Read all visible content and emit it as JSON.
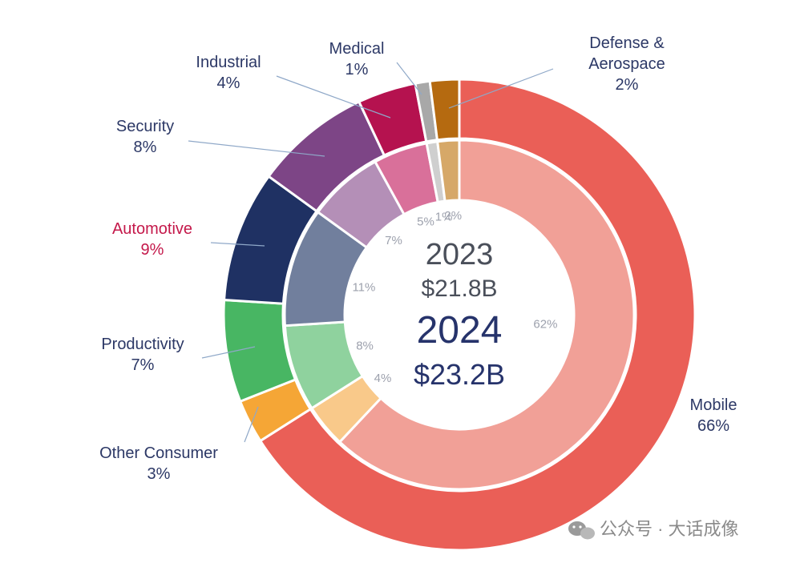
{
  "chart_data": {
    "type": "pie",
    "subtype": "nested-donut",
    "center": {
      "inner_year": "2023",
      "inner_total": "$21.8B",
      "outer_year": "2024",
      "outer_total": "$23.2B"
    },
    "categories": [
      "Mobile",
      "Other Consumer",
      "Productivity",
      "Automotive",
      "Security",
      "Industrial",
      "Medical",
      "Defense & Aerospace"
    ],
    "series": [
      {
        "name": "2024",
        "ring": "outer",
        "values": [
          66,
          3,
          7,
          9,
          8,
          4,
          1,
          2
        ],
        "labels": [
          "Mobile\n66%",
          "Other Consumer\n3%",
          "Productivity\n7%",
          "Automotive\n9%",
          "Security\n8%",
          "Industrial\n4%",
          "Medical\n1%",
          "Defense &\nAerospace\n2%"
        ]
      },
      {
        "name": "2023",
        "ring": "inner",
        "values": [
          62,
          4,
          8,
          11,
          7,
          5,
          1,
          2
        ],
        "labels": [
          "62%",
          "4%",
          "8%",
          "11%",
          "7%",
          "5%",
          "1%",
          "2%"
        ]
      }
    ],
    "colors": {
      "outer": [
        "#ea5f57",
        "#f5a636",
        "#48b663",
        "#1f3163",
        "#7d4586",
        "#b5124f",
        "#a8a8a8",
        "#b56a10"
      ],
      "inner": [
        "#f1a097",
        "#f9c98a",
        "#8fd29e",
        "#717f9d",
        "#b48fb7",
        "#d9709a",
        "#cfcfcf",
        "#d6a868"
      ],
      "highlight_label": "#c4184a",
      "label": "#2c3866"
    },
    "highlight": "Automotive"
  },
  "watermark": {
    "text": "公众号 · 大话成像",
    "icon": "wechat-icon"
  }
}
